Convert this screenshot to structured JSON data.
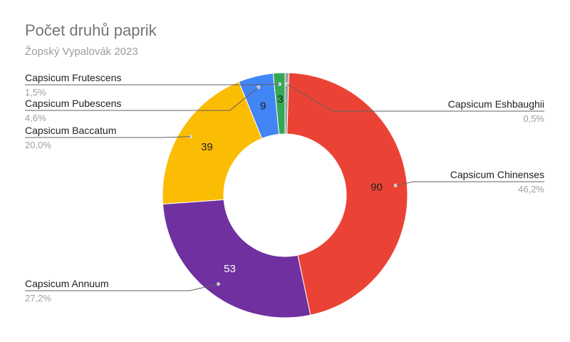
{
  "chart_data": {
    "type": "pie",
    "donut": true,
    "title": "Počet druhů paprik",
    "subtitle": "Žopský Vypalovák 2023",
    "slices": [
      {
        "name": "Capsicum Eshbaughii",
        "value": 1,
        "percent": "0,5%",
        "color": "#9e9e9e",
        "data_label": ""
      },
      {
        "name": "Capsicum Chinenses",
        "value": 90,
        "percent": "46,2%",
        "color": "#ea4335",
        "data_label": "90"
      },
      {
        "name": "Capsicum Annuum",
        "value": 53,
        "percent": "27,2%",
        "color": "#7030a0",
        "data_label": "53"
      },
      {
        "name": "Capsicum Baccatum",
        "value": 39,
        "percent": "20,0%",
        "color": "#fbbc04",
        "data_label": "39"
      },
      {
        "name": "Capsicum Pubescens",
        "value": 9,
        "percent": "4,6%",
        "color": "#4285f4",
        "data_label": "9"
      },
      {
        "name": "Capsicum Frutescens",
        "value": 3,
        "percent": "1,5%",
        "color": "#34a853",
        "data_label": "3"
      }
    ],
    "legend": "callout-labels"
  }
}
